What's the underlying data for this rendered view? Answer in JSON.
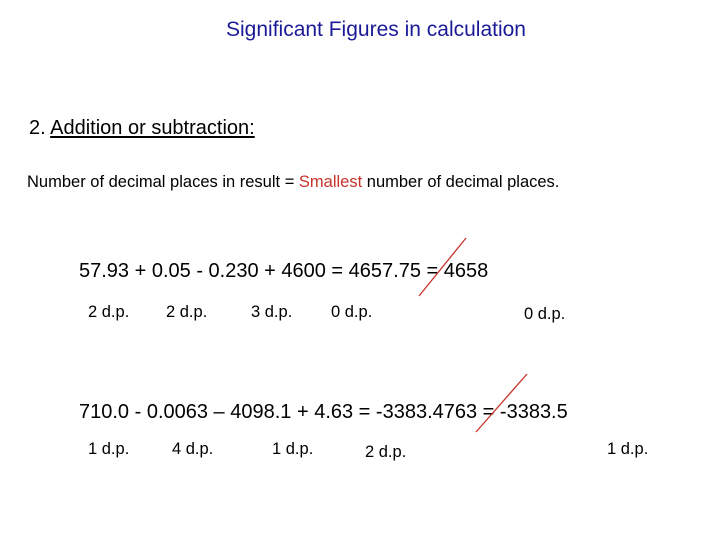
{
  "title": "Significant Figures in calculation",
  "section": {
    "number": "2.",
    "label": "Addition or subtraction:"
  },
  "rule": {
    "before": "Number of decimal places in result = ",
    "highlight": "Smallest",
    "after": " number of decimal places."
  },
  "example1": {
    "equation": "57.93 + 0.05 - 0.230 + 4600 = 4657.75 = 4658",
    "labels": [
      "2 d.p.",
      "2 d.p.",
      "3 d.p.",
      "0 d.p.",
      "0 d.p."
    ]
  },
  "example2": {
    "equation": "710.0 - 0.0063 – 4098.1 + 4.63 = -3383.4763 = -3383.5",
    "labels": [
      "1 d.p.",
      "4 d.p.",
      "1 d.p.",
      "2 d.p.",
      "1 d.p."
    ]
  },
  "colors": {
    "title": "#1a1a99",
    "highlight": "#c8332b",
    "strike": "#c8332b"
  }
}
